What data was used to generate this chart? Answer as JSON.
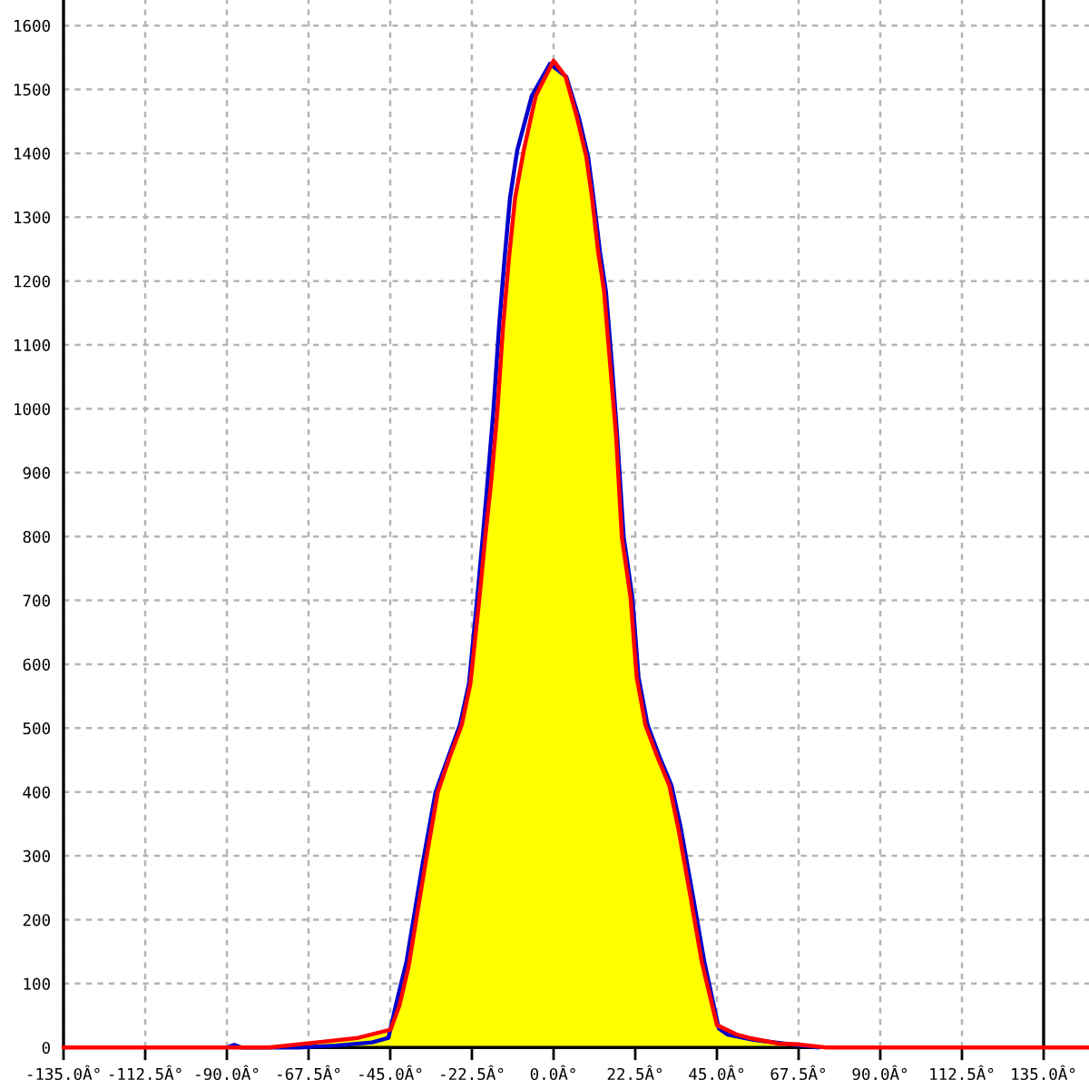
{
  "chart_data": {
    "type": "line",
    "xlim": [
      -152.5,
      147.5
    ],
    "ylim": [
      -65,
      1640
    ],
    "xticks": [
      {
        "value": -135,
        "label": "-135.0Â°"
      },
      {
        "value": -112.5,
        "label": "-112.5Â°"
      },
      {
        "value": -90,
        "label": "-90.0Â°"
      },
      {
        "value": -67.5,
        "label": "-67.5Â°"
      },
      {
        "value": -45,
        "label": "-45.0Â°"
      },
      {
        "value": -22.5,
        "label": "-22.5Â°"
      },
      {
        "value": 0,
        "label": "0.0Â°"
      },
      {
        "value": 22.5,
        "label": "22.5Â°"
      },
      {
        "value": 45,
        "label": "45.0Â°"
      },
      {
        "value": 67.5,
        "label": "67.5Â°"
      },
      {
        "value": 90,
        "label": "90.0Â°"
      },
      {
        "value": 112.5,
        "label": "112.5Â°"
      },
      {
        "value": 135,
        "label": "135.0Â°"
      }
    ],
    "yticks": [
      0,
      100,
      200,
      300,
      400,
      500,
      600,
      700,
      800,
      900,
      1000,
      1100,
      1200,
      1300,
      1400,
      1500,
      1600
    ],
    "grid": true,
    "series": [
      {
        "type": "area",
        "color": "#ffff00",
        "x": [
          -78.4,
          -65.3,
          -53.9,
          -44.9,
          -42.5,
          -40.0,
          -35.1,
          -31.9,
          -28.6,
          -25.3,
          -22.9,
          -20.4,
          -18.8,
          -17.2,
          -15.5,
          -13.9,
          -12.3,
          -10.6,
          -8.2,
          -4.9,
          0,
          3.3,
          6.5,
          9.0,
          10.6,
          12.3,
          13.9,
          15.5,
          17.2,
          18.8,
          21.2,
          22.9,
          25.3,
          28.6,
          31.9,
          34.3,
          37.6,
          40.8,
          45.0,
          50.6,
          53.9,
          62.1,
          67.0,
          75.1
        ],
        "values": [
          0,
          8,
          15,
          28,
          65,
          125,
          295,
          400,
          455,
          505,
          570,
          705,
          800,
          885,
          995,
          1130,
          1235,
          1330,
          1405,
          1490,
          1545,
          1520,
          1455,
          1395,
          1330,
          1245,
          1185,
          1075,
          960,
          800,
          705,
          580,
          505,
          455,
          410,
          345,
          240,
          135,
          35,
          20,
          15,
          6,
          5,
          0
        ]
      },
      {
        "color": "#0000cc",
        "x": [
          -90,
          -88,
          -86,
          -70,
          -60,
          -50,
          -45.5,
          -43.5,
          -40.5,
          -36,
          -32.5,
          -29,
          -25.8,
          -23.3,
          -21,
          -19.5,
          -18.2,
          -16.6,
          -15,
          -13.5,
          -12,
          -10,
          -6,
          -1,
          3.5,
          7,
          9.5,
          11,
          12.8,
          14.4,
          16,
          17.5,
          19.3,
          21.7,
          23.4,
          25.9,
          29.2,
          32.5,
          35,
          38.3,
          41.5,
          45.5,
          48,
          55,
          62,
          73
        ],
        "values": [
          0,
          4,
          0,
          0,
          3,
          8,
          15,
          65,
          135,
          290,
          400,
          455,
          505,
          570,
          705,
          800,
          885,
          995,
          1130,
          1235,
          1330,
          1405,
          1490,
          1540,
          1520,
          1455,
          1395,
          1330,
          1245,
          1185,
          1075,
          960,
          800,
          705,
          580,
          505,
          455,
          410,
          345,
          240,
          135,
          30,
          20,
          12,
          7,
          0
        ]
      },
      {
        "color": "#ff0000",
        "x": [
          -135,
          -78.4,
          -65.3,
          -53.9,
          -44.9,
          -42.5,
          -40.0,
          -35.1,
          -31.9,
          -28.6,
          -25.3,
          -22.9,
          -20.4,
          -18.8,
          -17.2,
          -15.5,
          -13.9,
          -12.3,
          -10.6,
          -8.2,
          -4.9,
          0,
          3.3,
          6.5,
          9.0,
          10.6,
          12.3,
          13.9,
          15.5,
          17.2,
          18.8,
          21.2,
          22.9,
          25.3,
          28.6,
          31.9,
          34.3,
          37.6,
          40.8,
          45.0,
          50.6,
          53.9,
          62.1,
          67.0,
          75.1,
          147.5
        ],
        "values": [
          0,
          0,
          8,
          15,
          28,
          65,
          125,
          295,
          400,
          455,
          505,
          570,
          705,
          800,
          885,
          995,
          1130,
          1235,
          1330,
          1405,
          1490,
          1545,
          1520,
          1455,
          1395,
          1330,
          1245,
          1185,
          1075,
          960,
          800,
          705,
          580,
          505,
          455,
          410,
          345,
          240,
          135,
          35,
          20,
          15,
          6,
          5,
          0,
          0
        ]
      }
    ]
  }
}
